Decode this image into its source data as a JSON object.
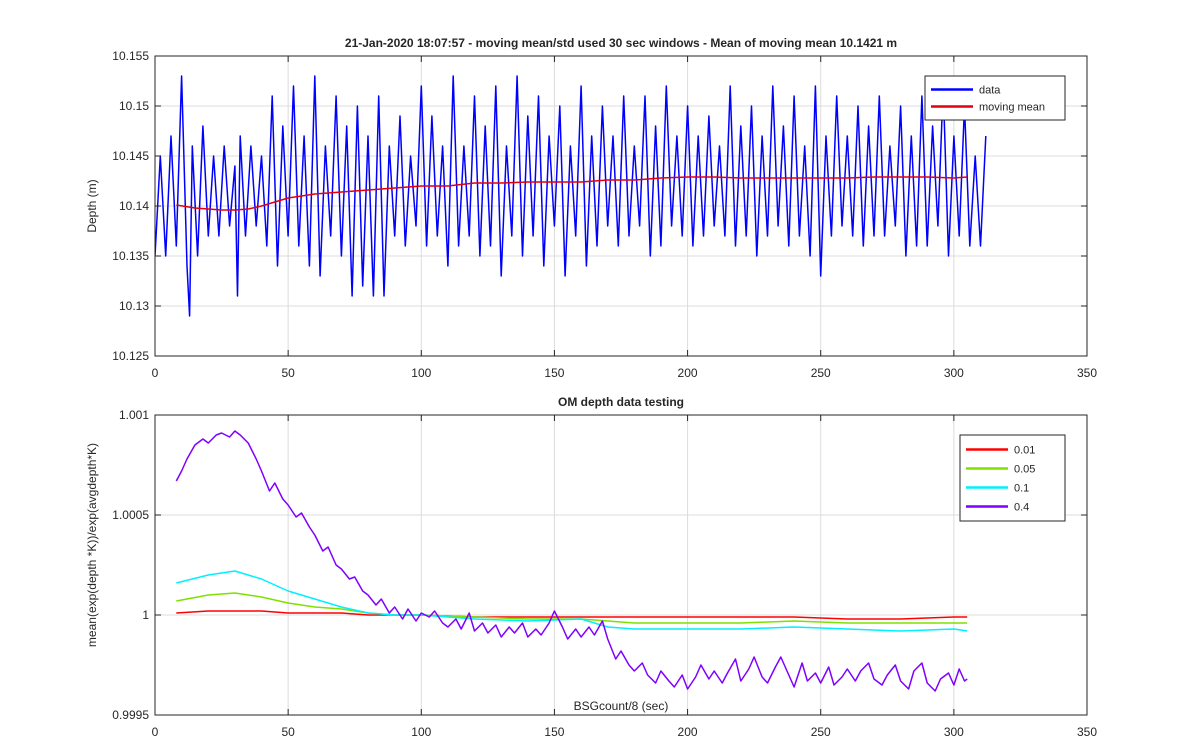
{
  "figure": {
    "background": "#ffffff",
    "axis_color": "#262626",
    "grid_color": "#dcdcdc"
  },
  "chart_data": [
    {
      "type": "line",
      "title": "21-Jan-2020 18:07:57 - moving mean/std used 30 sec windows - Mean of moving mean 10.1421 m",
      "xlabel": "",
      "ylabel": "Depth (m)",
      "xlim": [
        0,
        350
      ],
      "ylim": [
        10.125,
        10.155
      ],
      "xticks": [
        0,
        50,
        100,
        150,
        200,
        250,
        300,
        350
      ],
      "xtick_labels": [
        "0",
        "50",
        "100",
        "150",
        "200",
        "250",
        "300",
        "350"
      ],
      "yticks": [
        10.125,
        10.13,
        10.135,
        10.14,
        10.145,
        10.15,
        10.155
      ],
      "ytick_labels": [
        "10.125",
        "10.13",
        "10.135",
        "10.14",
        "10.145",
        "10.15",
        "10.155"
      ],
      "grid": true,
      "legend_position": "top-right",
      "series": [
        {
          "name": "data",
          "color": "#0000ff",
          "x": [
            0,
            2,
            4,
            6,
            8,
            10,
            12,
            13,
            14,
            16,
            18,
            20,
            22,
            24,
            26,
            28,
            30,
            31,
            32,
            34,
            36,
            38,
            40,
            42,
            44,
            46,
            48,
            50,
            52,
            54,
            56,
            58,
            60,
            62,
            64,
            66,
            68,
            70,
            72,
            74,
            76,
            78,
            80,
            82,
            84,
            86,
            88,
            90,
            92,
            94,
            96,
            98,
            100,
            102,
            104,
            106,
            108,
            110,
            112,
            114,
            116,
            118,
            120,
            122,
            124,
            126,
            128,
            130,
            132,
            134,
            136,
            138,
            140,
            142,
            144,
            146,
            148,
            150,
            152,
            154,
            156,
            158,
            160,
            162,
            164,
            166,
            168,
            170,
            172,
            174,
            176,
            178,
            180,
            182,
            184,
            186,
            188,
            190,
            192,
            194,
            196,
            198,
            200,
            202,
            204,
            206,
            208,
            210,
            212,
            214,
            216,
            218,
            220,
            222,
            224,
            226,
            228,
            230,
            232,
            234,
            236,
            238,
            240,
            242,
            244,
            246,
            248,
            250,
            252,
            254,
            256,
            258,
            260,
            262,
            264,
            266,
            268,
            270,
            272,
            274,
            276,
            278,
            280,
            282,
            284,
            286,
            288,
            290,
            292,
            294,
            296,
            298,
            300,
            302,
            304,
            306,
            308,
            310,
            312
          ],
          "y": [
            10.135,
            10.145,
            10.135,
            10.147,
            10.136,
            10.153,
            10.134,
            10.129,
            10.146,
            10.135,
            10.148,
            10.137,
            10.145,
            10.137,
            10.146,
            10.138,
            10.144,
            10.131,
            10.147,
            10.137,
            10.146,
            10.138,
            10.145,
            10.136,
            10.151,
            10.134,
            10.148,
            10.137,
            10.152,
            10.136,
            10.147,
            10.134,
            10.153,
            10.133,
            10.146,
            10.137,
            10.151,
            10.135,
            10.148,
            10.131,
            10.15,
            10.132,
            10.147,
            10.131,
            10.151,
            10.131,
            10.146,
            10.137,
            10.149,
            10.136,
            10.145,
            10.138,
            10.152,
            10.136,
            10.149,
            10.137,
            10.146,
            10.134,
            10.153,
            10.136,
            10.146,
            10.137,
            10.151,
            10.135,
            10.148,
            10.136,
            10.152,
            10.133,
            10.146,
            10.137,
            10.153,
            10.135,
            10.149,
            10.137,
            10.151,
            10.134,
            10.147,
            10.138,
            10.15,
            10.133,
            10.146,
            10.137,
            10.152,
            10.134,
            10.147,
            10.136,
            10.15,
            10.138,
            10.147,
            10.136,
            10.151,
            10.137,
            10.146,
            10.138,
            10.151,
            10.135,
            10.148,
            10.136,
            10.152,
            10.138,
            10.147,
            10.137,
            10.15,
            10.136,
            10.147,
            10.137,
            10.149,
            10.138,
            10.146,
            10.137,
            10.152,
            10.136,
            10.148,
            10.137,
            10.15,
            10.135,
            10.147,
            10.137,
            10.152,
            10.138,
            10.148,
            10.136,
            10.151,
            10.137,
            10.146,
            10.135,
            10.152,
            10.133,
            10.147,
            10.137,
            10.151,
            10.138,
            10.147,
            10.137,
            10.15,
            10.136,
            10.148,
            10.137,
            10.151,
            10.137,
            10.146,
            10.138,
            10.15,
            10.135,
            10.147,
            10.136,
            10.151,
            10.136,
            10.148,
            10.138,
            10.152,
            10.135,
            10.147,
            10.137,
            10.15,
            10.136,
            10.145,
            10.136,
            10.147
          ]
        },
        {
          "name": "moving mean",
          "color": "#e0000f",
          "x": [
            8,
            15,
            20,
            25,
            30,
            35,
            40,
            50,
            60,
            70,
            80,
            90,
            100,
            110,
            120,
            130,
            140,
            150,
            160,
            170,
            180,
            190,
            200,
            210,
            220,
            230,
            240,
            250,
            260,
            270,
            280,
            290,
            300,
            305
          ],
          "y": [
            10.1401,
            10.1398,
            10.1397,
            10.1396,
            10.1396,
            10.1397,
            10.14,
            10.1408,
            10.1412,
            10.1414,
            10.1416,
            10.1418,
            10.142,
            10.142,
            10.1423,
            10.1423,
            10.1424,
            10.1424,
            10.1424,
            10.1426,
            10.1426,
            10.1428,
            10.1429,
            10.1429,
            10.1428,
            10.1428,
            10.1428,
            10.1428,
            10.1428,
            10.1429,
            10.1429,
            10.1429,
            10.1428,
            10.1429
          ]
        }
      ]
    },
    {
      "type": "line",
      "title": "OM depth data testing",
      "xlabel": "BSGcount/8 (sec)",
      "ylabel": "mean(exp(depth *K))/exp(avgdepth*K)",
      "xlim": [
        0,
        350
      ],
      "ylim": [
        0.9995,
        1.001
      ],
      "xticks": [
        0,
        50,
        100,
        150,
        200,
        250,
        300,
        350
      ],
      "xtick_labels": [
        "0",
        "50",
        "100",
        "150",
        "200",
        "250",
        "300",
        "350"
      ],
      "yticks": [
        0.9995,
        1,
        1.0005,
        1.001
      ],
      "ytick_labels": [
        "0.9995",
        "1",
        "1.0005",
        "1.001"
      ],
      "grid": true,
      "legend_position": "top-right",
      "series": [
        {
          "name": "0.01",
          "color": "#ff0000",
          "x": [
            8,
            20,
            30,
            40,
            50,
            60,
            70,
            80,
            90,
            100,
            120,
            140,
            160,
            180,
            200,
            220,
            240,
            260,
            280,
            300,
            305
          ],
          "y": [
            1.00001,
            1.00002,
            1.00002,
            1.00002,
            1.00001,
            1.00001,
            1.00001,
            1.0,
            1.0,
            1.0,
            0.99999,
            0.99999,
            0.99999,
            0.99999,
            0.99999,
            0.99999,
            0.99999,
            0.99998,
            0.99998,
            0.99999,
            0.99999
          ]
        },
        {
          "name": "0.05",
          "color": "#80e000",
          "x": [
            8,
            20,
            30,
            40,
            50,
            60,
            70,
            80,
            90,
            100,
            120,
            140,
            160,
            180,
            200,
            220,
            240,
            260,
            280,
            300,
            305
          ],
          "y": [
            1.00007,
            1.0001,
            1.00011,
            1.00009,
            1.00006,
            1.00004,
            1.00003,
            1.00001,
            1.0,
            1.0,
            0.99999,
            0.99998,
            0.99998,
            0.99996,
            0.99996,
            0.99996,
            0.99997,
            0.99996,
            0.99996,
            0.99996,
            0.99996
          ]
        },
        {
          "name": "0.1",
          "color": "#00f0ff",
          "x": [
            8,
            20,
            30,
            40,
            50,
            60,
            70,
            80,
            90,
            100,
            120,
            140,
            160,
            170,
            180,
            200,
            220,
            240,
            260,
            280,
            300,
            305
          ],
          "y": [
            1.00016,
            1.0002,
            1.00022,
            1.00018,
            1.00012,
            1.00008,
            1.00004,
            1.00001,
            1.0,
            1.0,
            0.99998,
            0.99997,
            0.99998,
            0.99994,
            0.99993,
            0.99993,
            0.99993,
            0.99994,
            0.99993,
            0.99992,
            0.99993,
            0.99992
          ]
        },
        {
          "name": "0.4",
          "color": "#7f00ff",
          "x": [
            8,
            10,
            12,
            15,
            18,
            20,
            23,
            25,
            28,
            30,
            32,
            35,
            38,
            40,
            43,
            45,
            48,
            50,
            53,
            55,
            58,
            60,
            63,
            65,
            68,
            70,
            73,
            75,
            78,
            80,
            83,
            85,
            88,
            90,
            93,
            95,
            98,
            100,
            103,
            105,
            108,
            110,
            113,
            115,
            118,
            120,
            123,
            125,
            128,
            130,
            133,
            135,
            138,
            140,
            143,
            145,
            148,
            150,
            153,
            155,
            158,
            160,
            163,
            165,
            168,
            170,
            173,
            175,
            178,
            180,
            183,
            185,
            188,
            190,
            193,
            195,
            198,
            200,
            203,
            205,
            208,
            210,
            213,
            215,
            218,
            220,
            223,
            225,
            228,
            230,
            233,
            235,
            238,
            240,
            243,
            245,
            248,
            250,
            253,
            255,
            258,
            260,
            263,
            265,
            268,
            270,
            273,
            275,
            278,
            280,
            283,
            285,
            288,
            290,
            293,
            295,
            298,
            300,
            302,
            304,
            305
          ],
          "y": [
            1.00067,
            1.00072,
            1.00078,
            1.00085,
            1.00088,
            1.00086,
            1.0009,
            1.00091,
            1.00089,
            1.00092,
            1.0009,
            1.00086,
            1.00078,
            1.00072,
            1.00062,
            1.00066,
            1.00058,
            1.00055,
            1.00049,
            1.00051,
            1.00044,
            1.0004,
            1.00032,
            1.00034,
            1.00025,
            1.00023,
            1.00018,
            1.00019,
            1.00012,
            1.0001,
            1.00005,
            1.00008,
            1.00001,
            1.00004,
            0.99998,
            1.00003,
            0.99997,
            1.00001,
            0.99999,
            1.00002,
            0.99996,
            0.99994,
            0.99998,
            0.99993,
            1.00001,
            0.99992,
            0.99996,
            0.99991,
            0.99995,
            0.99989,
            0.99994,
            0.99991,
            0.99996,
            0.99989,
            0.99993,
            0.9999,
            0.99996,
            1.00002,
            0.99994,
            0.99988,
            0.99993,
            0.99989,
            0.99994,
            0.9999,
            0.99997,
            0.99988,
            0.99978,
            0.99982,
            0.99975,
            0.99972,
            0.99976,
            0.9997,
            0.99966,
            0.99972,
            0.99967,
            0.99964,
            0.9997,
            0.99963,
            0.99969,
            0.99975,
            0.99968,
            0.99972,
            0.99966,
            0.99971,
            0.99978,
            0.99967,
            0.99973,
            0.99979,
            0.99969,
            0.99966,
            0.99974,
            0.99979,
            0.9997,
            0.99964,
            0.99976,
            0.99967,
            0.99971,
            0.99966,
            0.99974,
            0.99965,
            0.99969,
            0.99973,
            0.99967,
            0.99972,
            0.99976,
            0.99968,
            0.99965,
            0.9997,
            0.99975,
            0.99967,
            0.99963,
            0.99972,
            0.99976,
            0.99966,
            0.99962,
            0.99968,
            0.99971,
            0.99965,
            0.99973,
            0.99967,
            0.99968
          ]
        }
      ]
    }
  ]
}
